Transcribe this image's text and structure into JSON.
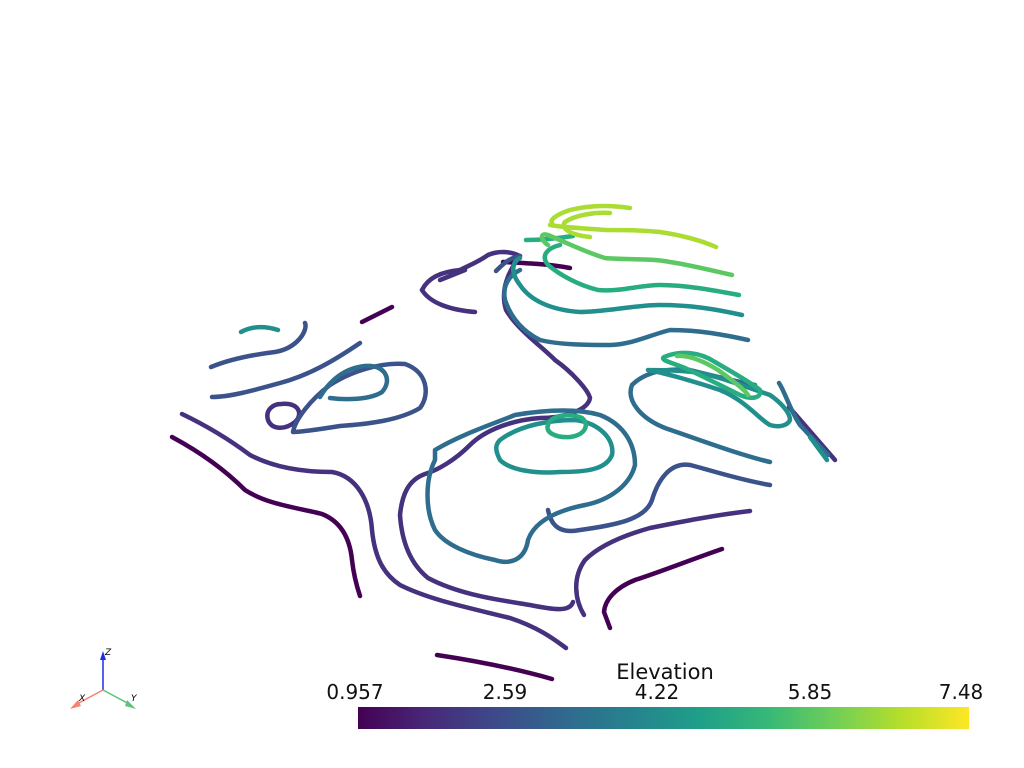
{
  "scalar_bar": {
    "title": "Elevation",
    "ticks": [
      "0.957",
      "2.59",
      "4.22",
      "5.85",
      "7.48"
    ],
    "range": [
      0.957,
      7.48
    ],
    "colormap": "viridis",
    "gradient_stops": [
      "#440154",
      "#482878",
      "#3e4989",
      "#31688e",
      "#26828e",
      "#1f9e89",
      "#35b779",
      "#6ece58",
      "#b5de2b",
      "#fde725"
    ]
  },
  "axes_widget": {
    "x_label": "X",
    "y_label": "Y",
    "z_label": "Z",
    "x_color": "#f4846c",
    "y_color": "#5ec47c",
    "z_color": "#1d2ee8"
  },
  "contour_colors": {
    "level_1": "#440154",
    "level_2": "#46317e",
    "level_3": "#3b528b",
    "level_4": "#2f6d8e",
    "level_5": "#21908d",
    "level_6": "#27ad81",
    "level_7": "#5cc863",
    "level_8": "#aadc32"
  }
}
